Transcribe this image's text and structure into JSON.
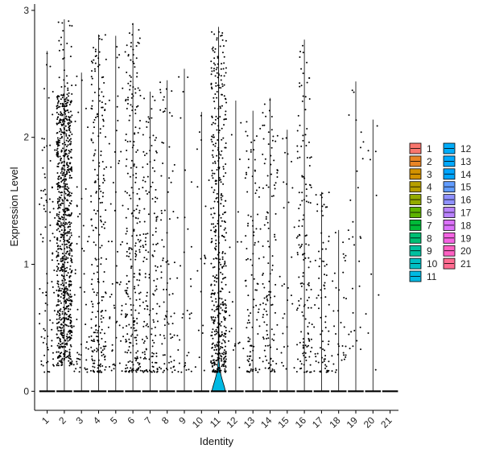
{
  "chart_data": {
    "type": "violin",
    "xlabel": "Identity",
    "ylabel": "Expression Level",
    "categories": [
      "1",
      "2",
      "3",
      "4",
      "5",
      "6",
      "7",
      "8",
      "9",
      "10",
      "11",
      "12",
      "13",
      "14",
      "15",
      "16",
      "17",
      "18",
      "19",
      "20",
      "21"
    ],
    "ylim": [
      -0.15,
      3.05
    ],
    "yticks": [
      0,
      1,
      2,
      3
    ],
    "colors": [
      "#F8766D",
      "#E88526",
      "#D39200",
      "#B79F00",
      "#93AA00",
      "#5EB300",
      "#00BA38",
      "#00BF74",
      "#00C19F",
      "#00BFC4",
      "#00B9E3",
      "#00ADFA",
      "#00A9FF",
      "#00A5FF",
      "#619CFF",
      "#8F91FF",
      "#B983FF",
      "#DB72FB",
      "#F564E3",
      "#FF61C3",
      "#FF6C91"
    ],
    "max_expression": [
      2.68,
      2.93,
      2.51,
      2.81,
      2.8,
      2.9,
      2.36,
      2.45,
      2.54,
      2.2,
      2.87,
      2.29,
      2.21,
      2.31,
      2.06,
      2.77,
      1.57,
      1.27,
      2.44,
      2.14,
      0.0
    ],
    "expressing_cells": [
      90,
      900,
      55,
      240,
      60,
      260,
      160,
      85,
      35,
      20,
      470,
      20,
      110,
      120,
      30,
      150,
      80,
      35,
      30,
      10,
      0
    ],
    "violin_peak_width": [
      0.01,
      0.01,
      0.01,
      0.01,
      0.01,
      0.01,
      0.01,
      0.01,
      0.01,
      0.01,
      0.42,
      0.01,
      0.01,
      0.01,
      0.01,
      0.01,
      0.01,
      0.01,
      0.01,
      0.01,
      0.01
    ],
    "legend": {
      "placement": "right",
      "columns": 2
    },
    "grid": false
  }
}
